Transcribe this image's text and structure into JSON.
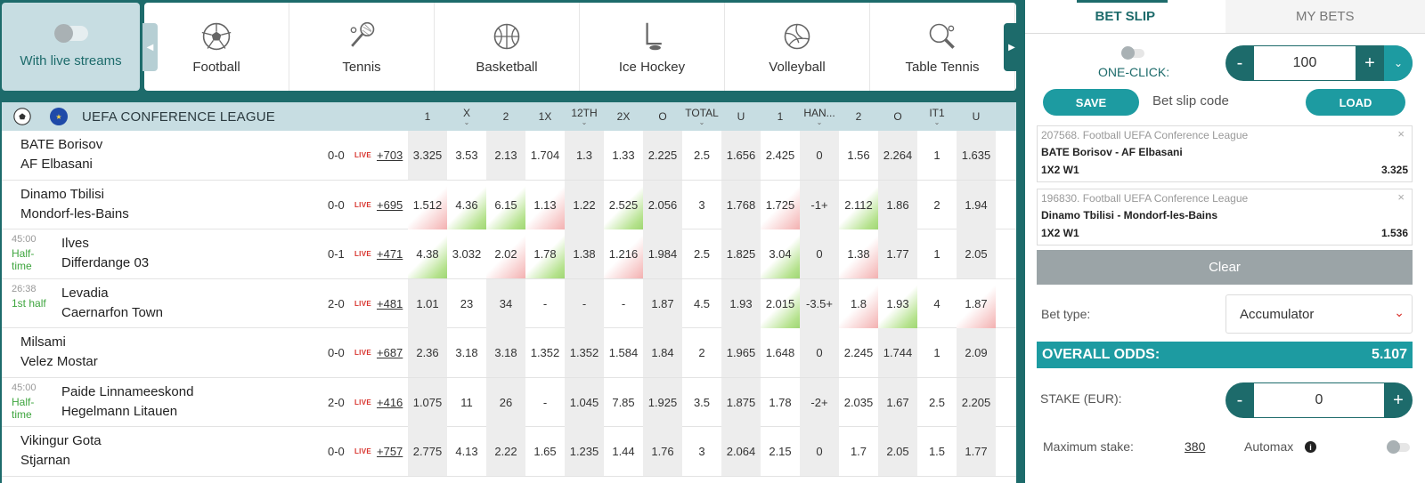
{
  "filters": {
    "live_streams_label": "With live streams"
  },
  "sports": [
    {
      "name": "Football",
      "icon": "football-icon"
    },
    {
      "name": "Tennis",
      "icon": "tennis-icon"
    },
    {
      "name": "Basketball",
      "icon": "basketball-icon"
    },
    {
      "name": "Ice Hockey",
      "icon": "ice-hockey-icon"
    },
    {
      "name": "Volleyball",
      "icon": "volleyball-icon"
    },
    {
      "name": "Table Tennis",
      "icon": "table-tennis-icon"
    }
  ],
  "league": {
    "name": "UEFA CONFERENCE LEAGUE",
    "columns": [
      "1",
      "X",
      "2",
      "1X",
      "12TH",
      "2X",
      "O",
      "TOTAL",
      "U",
      "1",
      "HAN...",
      "2",
      "O",
      "IT1",
      "U"
    ],
    "matches": [
      {
        "time": "",
        "status": "",
        "home": "BATE Borisov",
        "away": "AF Elbasani",
        "score": "0-0",
        "live": "LIVE",
        "more": "+703",
        "odds": [
          "3.325",
          "3.53",
          "2.13",
          "1.704",
          "1.3",
          "1.33",
          "2.225",
          "2.5",
          "1.656",
          "2.425",
          "0",
          "1.56",
          "2.264",
          "1",
          "1.635"
        ],
        "trend": [
          "",
          "",
          "",
          "",
          "",
          "",
          "",
          "",
          "",
          "",
          "",
          "",
          "",
          "",
          ""
        ]
      },
      {
        "time": "",
        "status": "",
        "home": "Dinamo Tbilisi",
        "away": "Mondorf-les-Bains",
        "score": "0-0",
        "live": "LIVE",
        "more": "+695",
        "odds": [
          "1.512",
          "4.36",
          "6.15",
          "1.13",
          "1.22",
          "2.525",
          "2.056",
          "3",
          "1.768",
          "1.725",
          "-1+",
          "2.112",
          "1.86",
          "2",
          "1.94"
        ],
        "trend": [
          "down",
          "up",
          "up",
          "down",
          "",
          "up",
          "",
          "",
          "",
          "down",
          "",
          "up",
          "",
          "",
          ""
        ]
      },
      {
        "time": "45:00",
        "status": "Half-time",
        "home": "Ilves",
        "away": "Differdange 03",
        "score": "0-1",
        "live": "LIVE",
        "more": "+471",
        "odds": [
          "4.38",
          "3.032",
          "2.02",
          "1.78",
          "1.38",
          "1.216",
          "1.984",
          "2.5",
          "1.825",
          "3.04",
          "0",
          "1.38",
          "1.77",
          "1",
          "2.05"
        ],
        "trend": [
          "up",
          "",
          "down",
          "up",
          "",
          "down",
          "",
          "",
          "",
          "up",
          "",
          "down",
          "",
          "",
          ""
        ]
      },
      {
        "time": "26:38",
        "status": "1st half",
        "home": "Levadia",
        "away": "Caernarfon Town",
        "score": "2-0",
        "live": "LIVE",
        "more": "+481",
        "odds": [
          "1.01",
          "23",
          "34",
          "-",
          "-",
          "-",
          "1.87",
          "4.5",
          "1.93",
          "2.015",
          "-3.5+",
          "1.8",
          "1.93",
          "4",
          "1.87"
        ],
        "trend": [
          "",
          "",
          "",
          "",
          "",
          "",
          "",
          "",
          "",
          "up",
          "",
          "down",
          "up",
          "",
          "down"
        ]
      },
      {
        "time": "",
        "status": "",
        "home": "Milsami",
        "away": "Velez Mostar",
        "score": "0-0",
        "live": "LIVE",
        "more": "+687",
        "odds": [
          "2.36",
          "3.18",
          "3.18",
          "1.352",
          "1.352",
          "1.584",
          "1.84",
          "2",
          "1.965",
          "1.648",
          "0",
          "2.245",
          "1.744",
          "1",
          "2.09"
        ],
        "trend": [
          "",
          "",
          "",
          "",
          "",
          "",
          "",
          "",
          "",
          "",
          "",
          "",
          "",
          "",
          ""
        ]
      },
      {
        "time": "45:00",
        "status": "Half-time",
        "home": "Paide Linnameeskond",
        "away": "Hegelmann Litauen",
        "score": "2-0",
        "live": "LIVE",
        "more": "+416",
        "odds": [
          "1.075",
          "11",
          "26",
          "-",
          "1.045",
          "7.85",
          "1.925",
          "3.5",
          "1.875",
          "1.78",
          "-2+",
          "2.035",
          "1.67",
          "2.5",
          "2.205"
        ],
        "trend": [
          "",
          "",
          "",
          "",
          "",
          "",
          "",
          "",
          "",
          "",
          "",
          "",
          "",
          "",
          ""
        ]
      },
      {
        "time": "",
        "status": "",
        "home": "Vikingur Gota",
        "away": "Stjarnan",
        "score": "0-0",
        "live": "LIVE",
        "more": "+757",
        "odds": [
          "2.775",
          "4.13",
          "2.22",
          "1.65",
          "1.235",
          "1.44",
          "1.76",
          "3",
          "2.064",
          "2.15",
          "0",
          "1.7",
          "2.05",
          "1.5",
          "1.77"
        ],
        "trend": [
          "",
          "",
          "",
          "",
          "",
          "",
          "",
          "",
          "",
          "",
          "",
          "",
          "",
          "",
          ""
        ]
      }
    ]
  },
  "bet_slip": {
    "tabs": [
      "BET SLIP",
      "MY BETS"
    ],
    "one_click_label": "ONE-CLICK:",
    "one_click_amount": "100",
    "save_label": "SAVE",
    "code_label": "Bet slip code",
    "load_label": "LOAD",
    "bets": [
      {
        "meta": "207568. Football UEFA Conference League",
        "match": "BATE Borisov - AF Elbasani",
        "pick": "1X2 W1",
        "odds": "3.325"
      },
      {
        "meta": "196830. Football UEFA Conference League",
        "match": "Dinamo Tbilisi - Mondorf-les-Bains",
        "pick": "1X2 W1",
        "odds": "1.536"
      }
    ],
    "clear_label": "Clear",
    "bet_type_label": "Bet type:",
    "bet_type_value": "Accumulator",
    "overall_odds_label": "OVERALL ODDS:",
    "overall_odds_value": "5.107",
    "stake_label": "STAKE (EUR):",
    "stake_value": "0",
    "max_stake_label": "Maximum stake:",
    "max_stake_value": "380",
    "automax_label": "Automax"
  },
  "colors": {
    "brand": "#1d6b6b",
    "accent": "#1d9ba1",
    "live": "#d8322c",
    "status": "#3ea53e"
  }
}
